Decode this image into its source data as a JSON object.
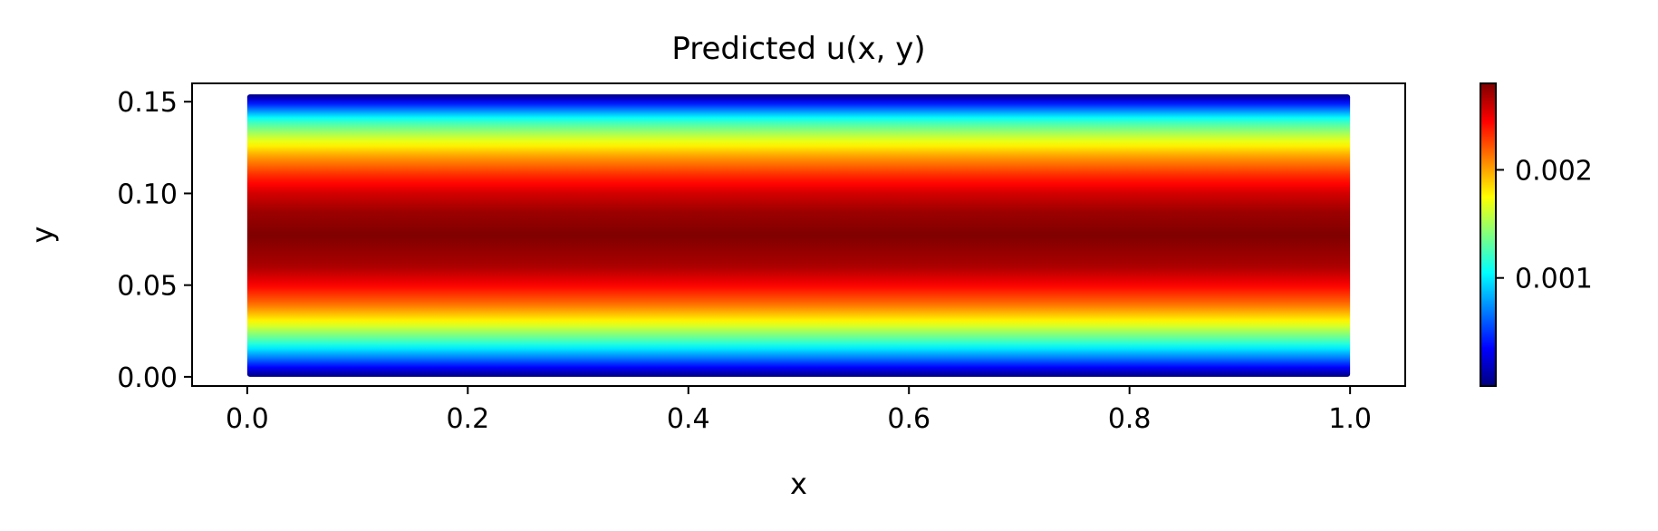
{
  "chart_data": {
    "type": "heatmap",
    "title": "Predicted u(x, y)",
    "xlabel": "x",
    "ylabel": "y",
    "xlim": [
      -0.05,
      1.05
    ],
    "ylim": [
      -0.005,
      0.16
    ],
    "x_ticks": [
      0.0,
      0.2,
      0.4,
      0.6,
      0.8,
      1.0
    ],
    "x_tick_labels": [
      "0.0",
      "0.2",
      "0.4",
      "0.6",
      "0.8",
      "1.0"
    ],
    "y_ticks": [
      0.0,
      0.05,
      0.1,
      0.15
    ],
    "y_tick_labels": [
      "0.00",
      "0.05",
      "0.10",
      "0.15"
    ],
    "domain": {
      "x": [
        0.0,
        1.0
      ],
      "y": [
        0.0,
        0.154
      ]
    },
    "field": {
      "description_of_values": "u depends on y only; parabolic profile, ~0 at walls, max at center",
      "y": [
        0.0,
        0.01,
        0.02,
        0.03,
        0.04,
        0.05,
        0.06,
        0.077,
        0.09,
        0.1,
        0.11,
        0.12,
        0.13,
        0.14,
        0.154
      ],
      "u": [
        0.0,
        0.00067,
        0.00126,
        0.00175,
        0.00216,
        0.00246,
        0.00268,
        0.0028,
        0.00272,
        0.00257,
        0.00233,
        0.00202,
        0.00163,
        0.00116,
        0.0
      ]
    },
    "colorbar": {
      "colormap": "jet",
      "vmin": 0.0,
      "vmax": 0.0028,
      "ticks": [
        0.001,
        0.002
      ],
      "tick_labels": [
        "0.001",
        "0.002"
      ]
    },
    "grid": false
  }
}
